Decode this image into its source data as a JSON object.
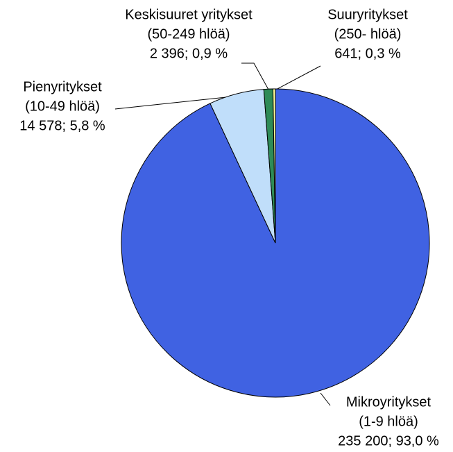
{
  "chart_data": {
    "type": "pie",
    "categories": [
      "Mikroyritykset",
      "Pienyritykset",
      "Keskisuuret yritykset",
      "Suuryritykset"
    ],
    "sizes": [
      "(1-9 hlöä)",
      "(10-49 hlöä)",
      "(50-249 hlöä)",
      "(250- hlöä)"
    ],
    "values": [
      235200,
      14578,
      2396,
      641
    ],
    "value_labels": [
      "235 200; 93,0 %",
      "14 578; 5,8 %",
      "2 396; 0,9 %",
      "641; 0,3 %"
    ],
    "colors": [
      "#4062e2",
      "#c0defa",
      "#2e8b57",
      "#ffff99"
    ]
  }
}
